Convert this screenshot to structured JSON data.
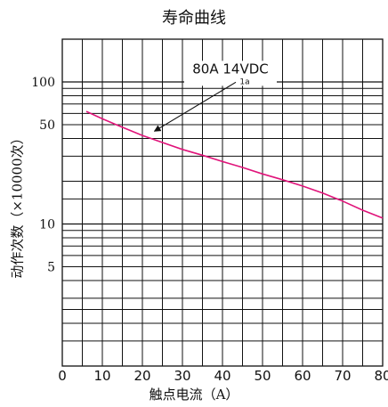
{
  "chart_data": {
    "type": "line",
    "title": "寿命曲线",
    "xlabel": "触点电流（A）",
    "ylabel": "动作次数（×10000次）",
    "xlim": [
      0,
      80
    ],
    "ylim": [
      1,
      200
    ],
    "yscale": "log",
    "grid": true,
    "x_ticks": [
      0,
      10,
      20,
      30,
      40,
      50,
      60,
      70,
      80
    ],
    "y_tick_labels": [
      {
        "value": 100,
        "label": "100"
      },
      {
        "value": 50,
        "label": "50"
      },
      {
        "value": 10,
        "label": "10"
      },
      {
        "value": 5,
        "label": "5"
      }
    ],
    "y_grid_values": [
      1.5,
      2,
      2.5,
      3,
      4,
      5,
      6,
      7,
      8,
      9,
      10,
      15,
      20,
      30,
      40,
      50,
      60,
      70,
      80,
      90,
      100
    ],
    "series": [
      {
        "name": "80A 14VDC",
        "color": "#e0147a",
        "x": [
          6,
          10,
          15,
          20,
          25,
          30,
          35,
          40,
          45,
          50,
          55,
          60,
          65,
          70,
          75,
          80
        ],
        "y": [
          62,
          55,
          48,
          42,
          37.5,
          33.5,
          30.5,
          27.5,
          25,
          22.5,
          20.5,
          18.5,
          16.5,
          14.5,
          12.5,
          11
        ]
      }
    ],
    "annotations": [
      {
        "text": "80A 14VDC",
        "subtext": "1a",
        "arrow_to_x": 23,
        "arrow_to_y": 45
      }
    ]
  }
}
